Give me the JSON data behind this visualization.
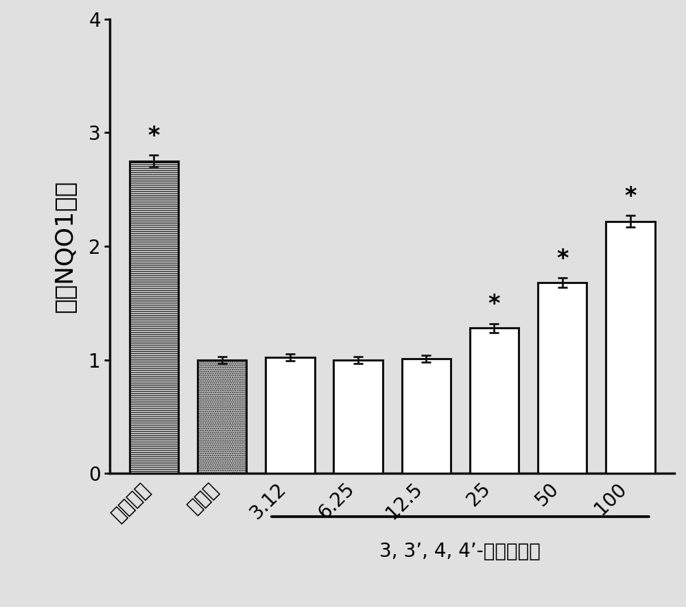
{
  "categories": [
    "萍卜硫素",
    "空白组",
    "3.12",
    "6.25",
    "12.5",
    "25",
    "50",
    "100"
  ],
  "values": [
    2.75,
    1.0,
    1.02,
    1.0,
    1.01,
    1.28,
    1.68,
    2.22
  ],
  "errors": [
    0.05,
    0.03,
    0.03,
    0.03,
    0.03,
    0.04,
    0.04,
    0.05
  ],
  "star_flags": [
    true,
    false,
    false,
    false,
    false,
    true,
    true,
    true
  ],
  "bar_patterns": [
    "horizontal",
    "dotted",
    "none",
    "none",
    "none",
    "none",
    "none",
    "none"
  ],
  "bar_edgecolor": "#111111",
  "ylabel": "相对NQO1活性",
  "ylim": [
    0,
    4
  ],
  "yticks": [
    0,
    1,
    2,
    3,
    4
  ],
  "xlabel_annotation": "3, 3’, 4, 4’-四羟基联苯",
  "background_color": "#e0e0e0",
  "linecolor": "#111111",
  "ylabel_fontsize": 26,
  "tick_fontsize": 20,
  "star_fontsize": 24,
  "annotation_fontsize": 20,
  "bar_width": 0.72
}
